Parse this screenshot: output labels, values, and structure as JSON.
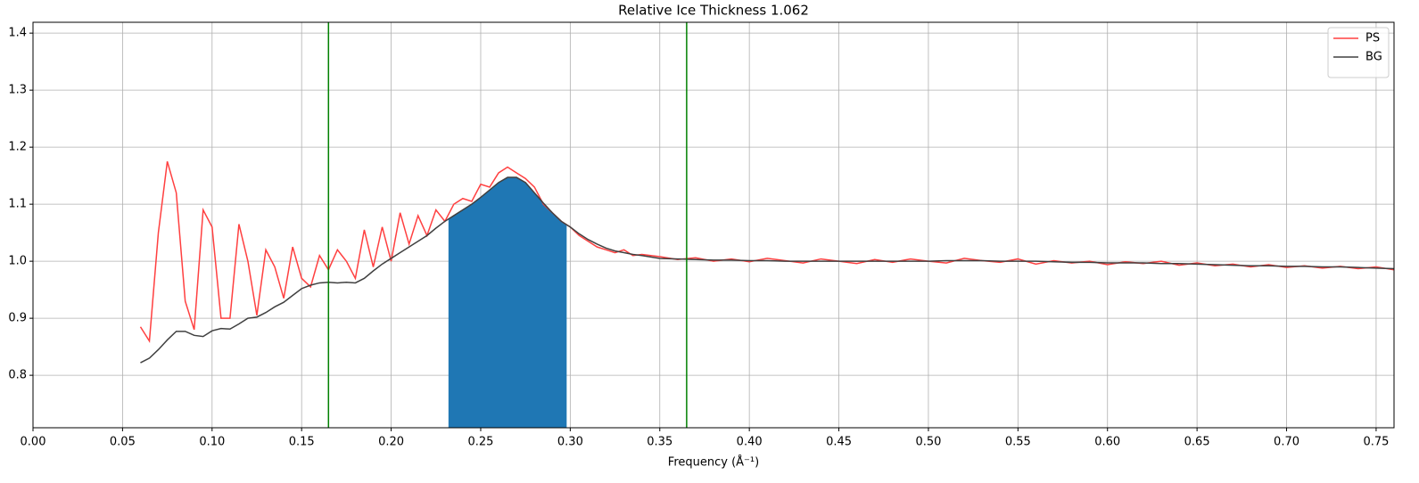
{
  "chart_data": {
    "type": "line",
    "title": "Relative Ice Thickness 1.062",
    "xlabel": "Frequency (Å⁻¹)",
    "x": [
      0.06,
      0.065,
      0.07,
      0.075,
      0.08,
      0.085,
      0.09,
      0.095,
      0.1,
      0.105,
      0.11,
      0.115,
      0.12,
      0.125,
      0.13,
      0.135,
      0.14,
      0.145,
      0.15,
      0.155,
      0.16,
      0.165,
      0.17,
      0.175,
      0.18,
      0.185,
      0.19,
      0.195,
      0.2,
      0.205,
      0.21,
      0.215,
      0.22,
      0.225,
      0.23,
      0.235,
      0.24,
      0.245,
      0.25,
      0.255,
      0.26,
      0.265,
      0.27,
      0.275,
      0.28,
      0.285,
      0.29,
      0.295,
      0.3,
      0.305,
      0.31,
      0.315,
      0.32,
      0.325,
      0.33,
      0.335,
      0.34,
      0.35,
      0.36,
      0.37,
      0.38,
      0.39,
      0.4,
      0.41,
      0.42,
      0.43,
      0.44,
      0.45,
      0.46,
      0.47,
      0.48,
      0.49,
      0.5,
      0.51,
      0.52,
      0.53,
      0.54,
      0.55,
      0.56,
      0.57,
      0.58,
      0.59,
      0.6,
      0.61,
      0.62,
      0.63,
      0.64,
      0.65,
      0.66,
      0.67,
      0.68,
      0.69,
      0.7,
      0.71,
      0.72,
      0.73,
      0.74,
      0.75,
      0.76
    ],
    "series": [
      {
        "name": "PS",
        "color": "#ff4040",
        "values": [
          0.885,
          0.86,
          1.05,
          1.175,
          1.12,
          0.93,
          0.88,
          1.09,
          1.06,
          0.9,
          0.9,
          1.065,
          1.0,
          0.905,
          1.02,
          0.99,
          0.935,
          1.025,
          0.97,
          0.955,
          1.01,
          0.985,
          1.02,
          1.0,
          0.97,
          1.055,
          0.99,
          1.06,
          1.0,
          1.085,
          1.03,
          1.08,
          1.045,
          1.09,
          1.07,
          1.1,
          1.11,
          1.105,
          1.135,
          1.13,
          1.155,
          1.165,
          1.155,
          1.145,
          1.13,
          1.1,
          1.085,
          1.07,
          1.06,
          1.045,
          1.035,
          1.025,
          1.02,
          1.015,
          1.02,
          1.01,
          1.012,
          1.008,
          1.003,
          1.006,
          1.0,
          1.004,
          0.999,
          1.005,
          1.001,
          0.997,
          1.004,
          1.0,
          0.996,
          1.003,
          0.998,
          1.004,
          1.0,
          0.997,
          1.005,
          1.001,
          0.998,
          1.004,
          0.995,
          1.001,
          0.997,
          1.0,
          0.994,
          0.999,
          0.996,
          1.0,
          0.993,
          0.997,
          0.992,
          0.995,
          0.99,
          0.994,
          0.989,
          0.992,
          0.988,
          0.991,
          0.987,
          0.99,
          0.985
        ]
      },
      {
        "name": "BG",
        "color": "#404040",
        "values": [
          0.822,
          0.83,
          0.845,
          0.862,
          0.877,
          0.877,
          0.87,
          0.868,
          0.878,
          0.882,
          0.881,
          0.89,
          0.9,
          0.902,
          0.91,
          0.92,
          0.928,
          0.94,
          0.952,
          0.958,
          0.962,
          0.963,
          0.962,
          0.963,
          0.962,
          0.97,
          0.983,
          0.995,
          1.005,
          1.015,
          1.025,
          1.035,
          1.045,
          1.058,
          1.07,
          1.08,
          1.09,
          1.1,
          1.112,
          1.125,
          1.138,
          1.147,
          1.147,
          1.138,
          1.12,
          1.102,
          1.085,
          1.07,
          1.06,
          1.048,
          1.038,
          1.03,
          1.023,
          1.018,
          1.015,
          1.012,
          1.01,
          1.005,
          1.004,
          1.003,
          1.002,
          1.002,
          1.001,
          1.001,
          1.0,
          1.0,
          1.0,
          1.0,
          1.0,
          1.0,
          1.0,
          1.0,
          1.0,
          1.001,
          1.001,
          1.001,
          1.0,
          1.0,
          1.0,
          0.999,
          0.998,
          0.998,
          0.997,
          0.997,
          0.997,
          0.996,
          0.996,
          0.995,
          0.994,
          0.993,
          0.992,
          0.992,
          0.991,
          0.991,
          0.99,
          0.99,
          0.989,
          0.988,
          0.987
        ]
      }
    ],
    "vlines": {
      "color": "#008000",
      "x": [
        0.165,
        0.365
      ]
    },
    "fill_between": {
      "color": "#1f77b4",
      "series": 1,
      "xrange": [
        0.232,
        0.298
      ]
    },
    "xlim": [
      0,
      0.76
    ],
    "ylim": [
      0.708,
      1.419
    ],
    "xticks": [
      {
        "value": 0,
        "label": "0.00"
      },
      0.05,
      {
        "value": 0.1,
        "label": "0.10"
      },
      0.15,
      {
        "value": 0.2,
        "label": "0.20"
      },
      0.25,
      {
        "value": 0.3,
        "label": "0.30"
      },
      0.35,
      {
        "value": 0.4,
        "label": "0.40"
      },
      0.45,
      {
        "value": 0.5,
        "label": "0.50"
      },
      0.55,
      {
        "value": 0.6,
        "label": "0.60"
      },
      0.65,
      {
        "value": 0.7,
        "label": "0.70"
      },
      0.75
    ],
    "yticks": [
      0.8,
      0.9,
      {
        "value": 1,
        "label": "1.0"
      },
      1.1,
      1.2,
      1.3,
      1.4
    ],
    "grid": true,
    "legend": "upper right"
  }
}
